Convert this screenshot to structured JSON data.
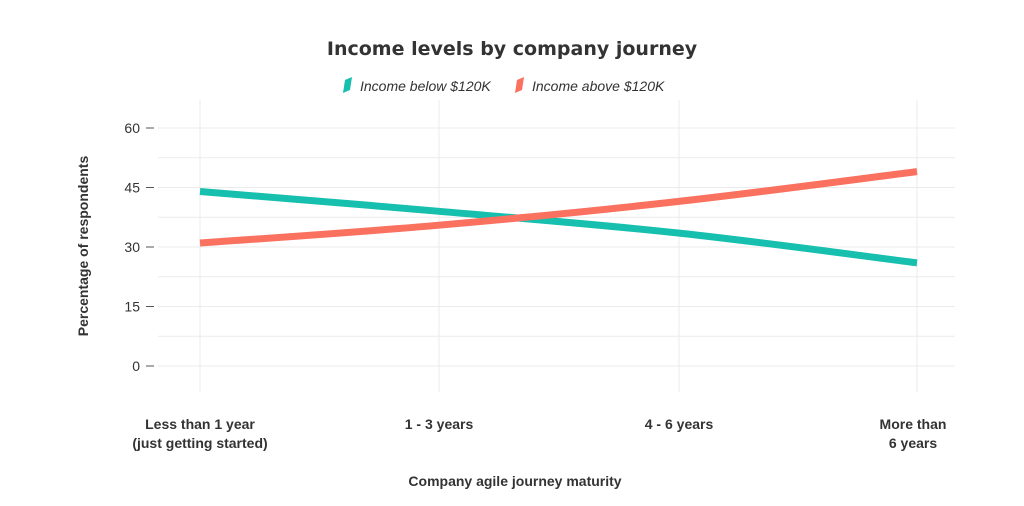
{
  "chart_data": {
    "type": "line",
    "title": "Income levels by company journey",
    "xlabel": "Company agile journey maturity",
    "ylabel": "Percentage of respondents",
    "categories": [
      [
        "Less than 1 year",
        "(just getting started)"
      ],
      [
        "1 - 3 years"
      ],
      [
        "4 - 6 years"
      ],
      [
        "More than",
        "6 years"
      ]
    ],
    "ylim": [
      0,
      60
    ],
    "yticks": [
      0,
      15,
      30,
      45,
      60
    ],
    "grid": true,
    "legend_position": "top-center",
    "series": [
      {
        "name": "Income below $120K",
        "color": "#16bfae",
        "values": [
          44,
          39,
          33.5,
          26
        ]
      },
      {
        "name": "Income above $120K",
        "color": "#fa7160",
        "values": [
          31,
          35.5,
          41.5,
          49
        ]
      }
    ]
  }
}
